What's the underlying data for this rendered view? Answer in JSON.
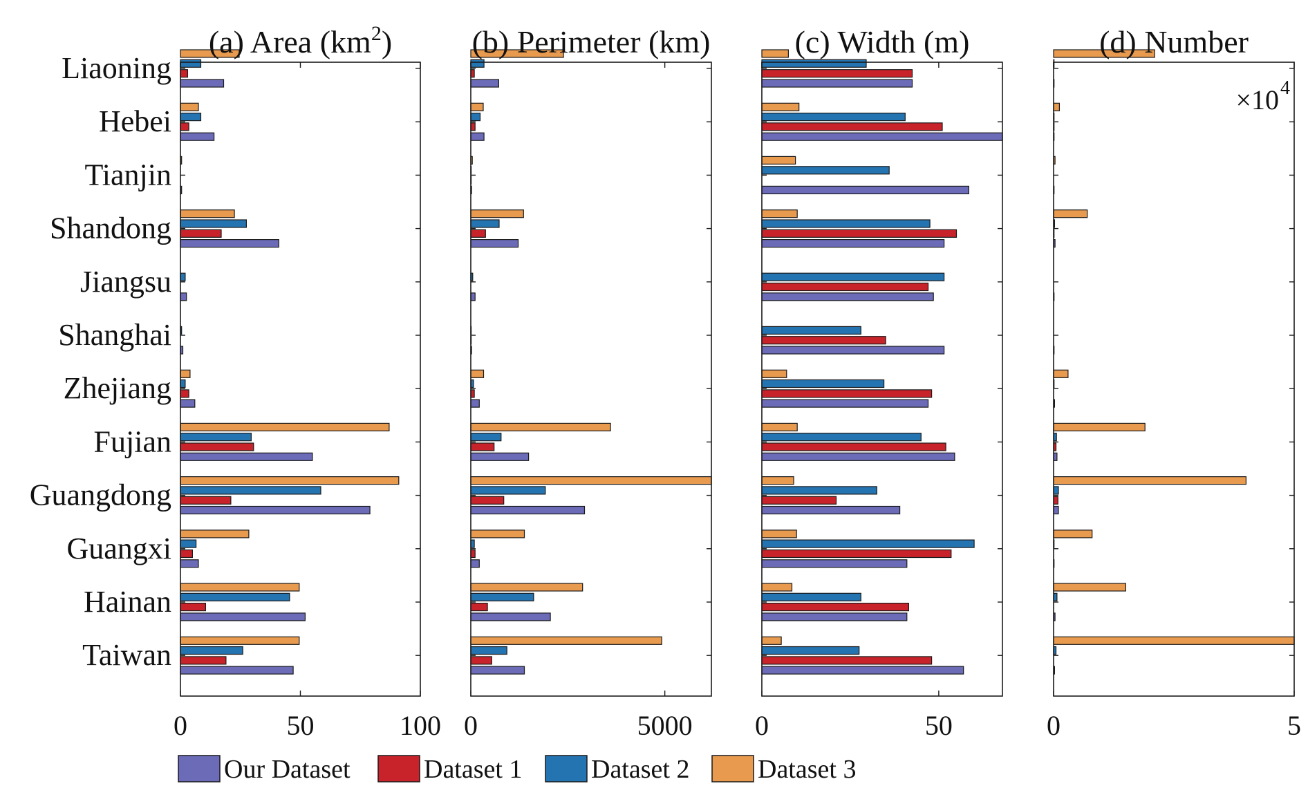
{
  "chart_data": {
    "type": "bar",
    "orientation": "horizontal",
    "categories": [
      "Liaoning",
      "Hebei",
      "Tianjin",
      "Shandong",
      "Jiangsu",
      "Shanghai",
      "Zhejiang",
      "Fujian",
      "Guangdong",
      "Guangxi",
      "Hainan",
      "Taiwan"
    ],
    "legend": {
      "placement": "bottom",
      "entries": [
        "Our Dataset",
        "Dataset 1",
        "Dataset 2",
        "Dataset 3"
      ]
    },
    "series_colors": {
      "Our Dataset": "#6b6bb8",
      "Dataset 1": "#c8232b",
      "Dataset 2": "#2474b2",
      "Dataset 3": "#e89a4f"
    },
    "panels": [
      {
        "id": "a",
        "title_prefix": "(a) Area (km",
        "title_sup": "2",
        "title_suffix": ")",
        "xlim": [
          0,
          100
        ],
        "xticks": [
          0,
          50,
          100
        ],
        "xtick_labels": [
          "0",
          "50",
          "100"
        ],
        "multiplier": "",
        "series": [
          {
            "name": "Our Dataset",
            "values": [
              18,
              14,
              0.5,
              41,
              2.5,
              1,
              6,
              55,
              79,
              7.5,
              52,
              47
            ]
          },
          {
            "name": "Dataset 1",
            "values": [
              3,
              3.5,
              0,
              17,
              0,
              0,
              3.5,
              30.5,
              21,
              5,
              10.5,
              19
            ]
          },
          {
            "name": "Dataset 2",
            "values": [
              8.5,
              8.5,
              0,
              27.5,
              2,
              0.5,
              2,
              29.5,
              58.5,
              6.5,
              45.5,
              26
            ]
          },
          {
            "name": "Dataset 3",
            "values": [
              24.5,
              7.5,
              0.5,
              22.5,
              0,
              0,
              4,
              87,
              91,
              28.5,
              49.5,
              49.5
            ]
          }
        ]
      },
      {
        "id": "b",
        "title_prefix": "(b) Perimeter (km)",
        "title_sup": "",
        "title_suffix": "",
        "xlim": [
          0,
          6200
        ],
        "xticks": [
          0,
          5000
        ],
        "xtick_labels": [
          "0",
          "5000"
        ],
        "multiplier": "",
        "series": [
          {
            "name": "Our Dataset",
            "values": [
              720,
              340,
              20,
              1220,
              110,
              20,
              220,
              1490,
              2930,
              220,
              2050,
              1380
            ]
          },
          {
            "name": "Dataset 1",
            "values": [
              90,
              110,
              10,
              380,
              0,
              10,
              90,
              600,
              850,
              110,
              430,
              540
            ]
          },
          {
            "name": "Dataset 2",
            "values": [
              340,
              240,
              10,
              730,
              50,
              10,
              70,
              780,
              1920,
              90,
              1620,
              930
            ]
          },
          {
            "name": "Dataset 3",
            "values": [
              2390,
              320,
              40,
              1360,
              0,
              0,
              330,
              3600,
              6200,
              1380,
              2880,
              4920
            ]
          }
        ]
      },
      {
        "id": "c",
        "title_prefix": "(c) Width (m)",
        "title_sup": "",
        "title_suffix": "",
        "xlim": [
          0,
          68
        ],
        "xticks": [
          0,
          50
        ],
        "xtick_labels": [
          "0",
          "50"
        ],
        "multiplier": "",
        "series": [
          {
            "name": "Our Dataset",
            "values": [
              42.5,
              68,
              58.5,
              51.5,
              48.5,
              51.5,
              47,
              54.5,
              39,
              41,
              41,
              57
            ]
          },
          {
            "name": "Dataset 1",
            "values": [
              42.5,
              51,
              0,
              55,
              47,
              35,
              48,
              52,
              21,
              53.5,
              41.5,
              48
            ]
          },
          {
            "name": "Dataset 2",
            "values": [
              29.5,
              40.5,
              36,
              47.5,
              51.5,
              28,
              34.5,
              45,
              32.5,
              60,
              28,
              27.5
            ]
          },
          {
            "name": "Dataset 3",
            "values": [
              7.5,
              10.5,
              9.5,
              10,
              0,
              0,
              7,
              10,
              9,
              9.8,
              8.5,
              5.5
            ]
          }
        ]
      },
      {
        "id": "d",
        "title_prefix": "(d) Number",
        "title_sup": "",
        "title_suffix": "",
        "xlim": [
          0,
          5
        ],
        "xticks": [
          0,
          5
        ],
        "xtick_labels": [
          "0",
          "5"
        ],
        "multiplier": "×10",
        "multiplier_exp": "4",
        "series": [
          {
            "name": "Our Dataset",
            "values": [
              0.01,
              0.01,
              0.01,
              0.03,
              0.01,
              0.01,
              0.02,
              0.07,
              0.1,
              0.01,
              0.03,
              0.02
            ]
          },
          {
            "name": "Dataset 1",
            "values": [
              0,
              0.01,
              0,
              0.01,
              0,
              0,
              0,
              0.05,
              0.09,
              0,
              0,
              0
            ]
          },
          {
            "name": "Dataset 2",
            "values": [
              0.01,
              0.01,
              0,
              0.02,
              0,
              0,
              0.01,
              0.06,
              0.1,
              0.01,
              0.07,
              0.05
            ]
          },
          {
            "name": "Dataset 3",
            "values": [
              2.1,
              0.12,
              0.03,
              0.7,
              0,
              0,
              0.3,
              1.9,
              4.0,
              0.8,
              1.5,
              5.0
            ]
          }
        ]
      }
    ]
  }
}
